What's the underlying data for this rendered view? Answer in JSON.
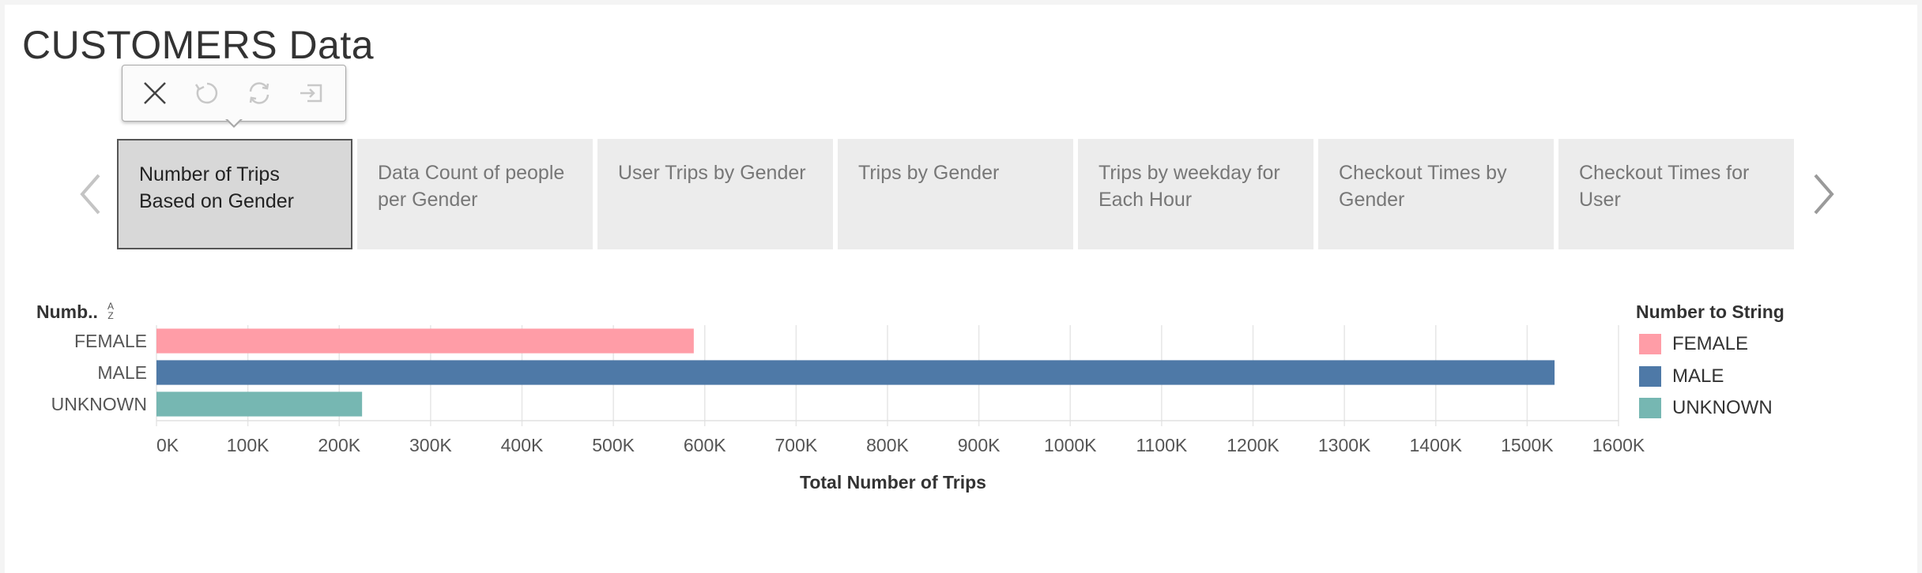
{
  "page": {
    "title": "CUSTOMERS Data"
  },
  "toolbar": {
    "buttons": [
      {
        "icon": "close-icon"
      },
      {
        "icon": "revert-icon"
      },
      {
        "icon": "refresh-icon"
      },
      {
        "icon": "exit-icon"
      }
    ]
  },
  "story": {
    "tabs": [
      {
        "label": "Number of Trips Based on Gender",
        "active": true
      },
      {
        "label": "Data Count of people per Gender",
        "active": false
      },
      {
        "label": "User Trips by Gender",
        "active": false
      },
      {
        "label": "Trips by Gender",
        "active": false
      },
      {
        "label": "Trips by weekday for Each Hour",
        "active": false
      },
      {
        "label": "Checkout Times by Gender",
        "active": false
      },
      {
        "label": "Checkout Times for User",
        "active": false
      }
    ]
  },
  "chart_data": {
    "type": "bar",
    "orientation": "horizontal",
    "y_header": "Numb..",
    "categories": [
      "FEMALE",
      "MALE",
      "UNKNOWN"
    ],
    "values": [
      588000,
      1530000,
      225000
    ],
    "colors": [
      "#ff9da7",
      "#4e79a7",
      "#76b7b2"
    ],
    "xlabel": "Total Number of Trips",
    "xlim": [
      0,
      1600000
    ],
    "x_ticks": [
      "0K",
      "100K",
      "200K",
      "300K",
      "400K",
      "500K",
      "600K",
      "700K",
      "800K",
      "900K",
      "1000K",
      "1100K",
      "1200K",
      "1300K",
      "1400K",
      "1500K",
      "1600K"
    ],
    "grid": true,
    "legend": {
      "title": "Number to String",
      "placement": "right",
      "entries": [
        "FEMALE",
        "MALE",
        "UNKNOWN"
      ]
    }
  }
}
